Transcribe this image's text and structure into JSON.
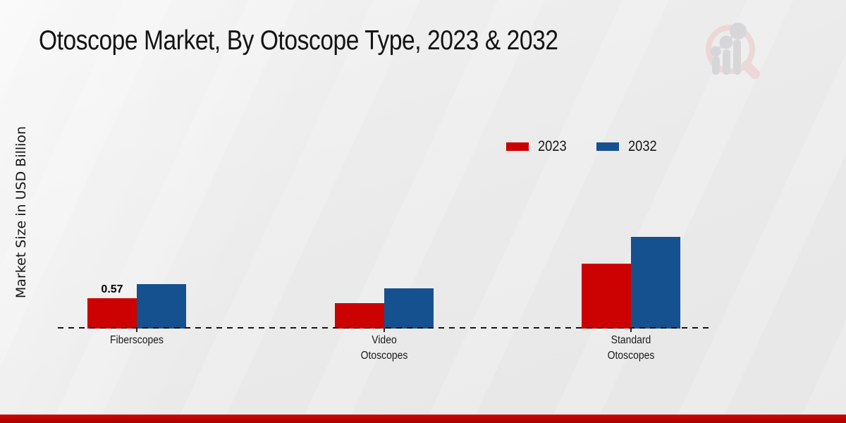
{
  "title": "Otoscope Market, By Otoscope Type, 2023 & 2032",
  "watermark_icon": "magnifier-bar-chart-logo",
  "colors": {
    "series_2023": "#cc0202",
    "series_2032": "#15518f",
    "bottom_strip": "#c00303",
    "baseline": "#161616",
    "background": "#eaeaea",
    "watermark_pink": "#ecd4d4",
    "watermark_gray": "#d3d3d7"
  },
  "chart_data": {
    "type": "bar",
    "title": "Otoscope Market, By Otoscope Type, 2023 & 2032",
    "xlabel": "",
    "ylabel": "Market Size in USD Billion",
    "unit": "USD Billion",
    "categories": [
      "Fiberscopes",
      "Video Otoscopes",
      "Standard Otoscopes"
    ],
    "category_label_lines": [
      [
        "Fiberscopes"
      ],
      [
        "Video",
        "Otoscopes"
      ],
      [
        "Standard",
        "Otoscopes"
      ]
    ],
    "series": [
      {
        "name": "2023",
        "color": "#cc0202",
        "values": [
          0.57,
          0.48,
          1.24
        ]
      },
      {
        "name": "2032",
        "color": "#15518f",
        "values": [
          0.84,
          0.76,
          1.75
        ]
      }
    ],
    "data_labels": [
      {
        "category": "Fiberscopes",
        "series": "2023",
        "text": "0.57"
      }
    ],
    "ylim": [
      0,
      2
    ],
    "grid": false,
    "axis_style": "dashed-baseline-only",
    "legend_position": "top-right"
  }
}
